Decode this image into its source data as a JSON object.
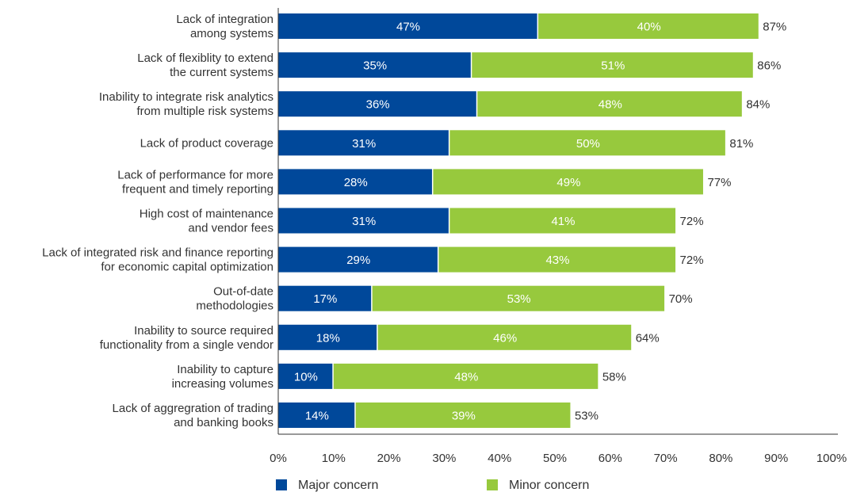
{
  "chart_data": {
    "type": "bar",
    "orientation": "horizontal",
    "stacked": true,
    "categories": [
      "Lack of integration\namong systems",
      "Lack of flexiblity to extend\nthe current systems",
      "Inability to integrate risk analytics\nfrom multiple risk systems",
      "Lack of product coverage",
      "Lack of performance for more\nfrequent and timely reporting",
      "High cost of maintenance\nand vendor fees",
      "Lack of integrated risk and finance reporting\nfor economic capital optimization",
      "Out-of-date\nmethodologies",
      "Inability to source required\nfunctionality from a single vendor",
      "Inability to capture\nincreasing volumes",
      "Lack of aggregration of trading\nand banking books"
    ],
    "series": [
      {
        "name": "Major concern",
        "color": "#00489a",
        "values": [
          47,
          35,
          36,
          31,
          28,
          31,
          29,
          17,
          18,
          10,
          14
        ]
      },
      {
        "name": "Minor concern",
        "color": "#97c93d",
        "values": [
          40,
          51,
          48,
          50,
          49,
          41,
          43,
          53,
          46,
          48,
          39
        ]
      }
    ],
    "totals": [
      87,
      86,
      84,
      81,
      77,
      72,
      72,
      70,
      64,
      58,
      53
    ],
    "value_suffix": "%",
    "xlim": [
      0,
      100
    ],
    "xticks": [
      "0%",
      "10%",
      "20%",
      "30%",
      "40%",
      "50%",
      "60%",
      "70%",
      "80%",
      "90%",
      "100%"
    ],
    "grid": false,
    "legend_position": "bottom"
  }
}
